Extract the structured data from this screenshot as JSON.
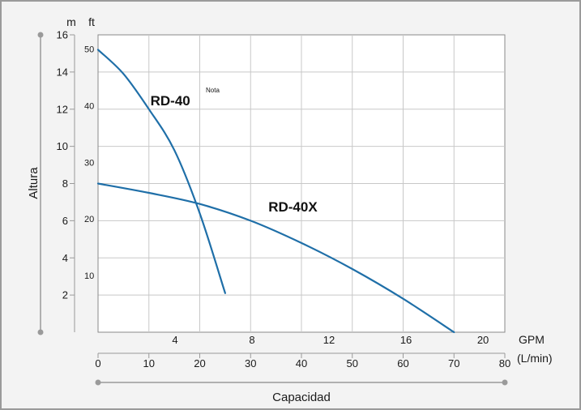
{
  "chart_data": {
    "type": "line",
    "axes": {
      "y_title": "Altura",
      "x_title": "Capacidad",
      "y_unit_m": "m",
      "y_unit_ft": "ft",
      "x_unit_gpm": "GPM",
      "x_unit_lpm": "(L/min)",
      "ylim_m": [
        0,
        16
      ],
      "xlim_lpm": [
        0,
        80
      ],
      "y_ticks_m": [
        2,
        4,
        6,
        8,
        10,
        12,
        14,
        16
      ],
      "y_ticks_ft": [
        10,
        20,
        30,
        40,
        50
      ],
      "x_ticks_lpm": [
        0,
        10,
        20,
        30,
        40,
        50,
        60,
        70,
        80
      ],
      "x_ticks_gpm": [
        4,
        8,
        12,
        16,
        20
      ]
    },
    "grid": true,
    "series": [
      {
        "name": "RD-40",
        "superscript": "Nota",
        "color": "#1f6fa8",
        "x": [
          0,
          5,
          10,
          15,
          20,
          25
        ],
        "y": [
          15.2,
          13.9,
          12.0,
          9.8,
          6.4,
          2.1
        ]
      },
      {
        "name": "RD-40X",
        "color": "#1f6fa8",
        "x": [
          0,
          10,
          20,
          30,
          40,
          50,
          60,
          70
        ],
        "y": [
          8.0,
          7.5,
          6.9,
          6.0,
          4.8,
          3.4,
          1.8,
          0
        ]
      }
    ]
  }
}
